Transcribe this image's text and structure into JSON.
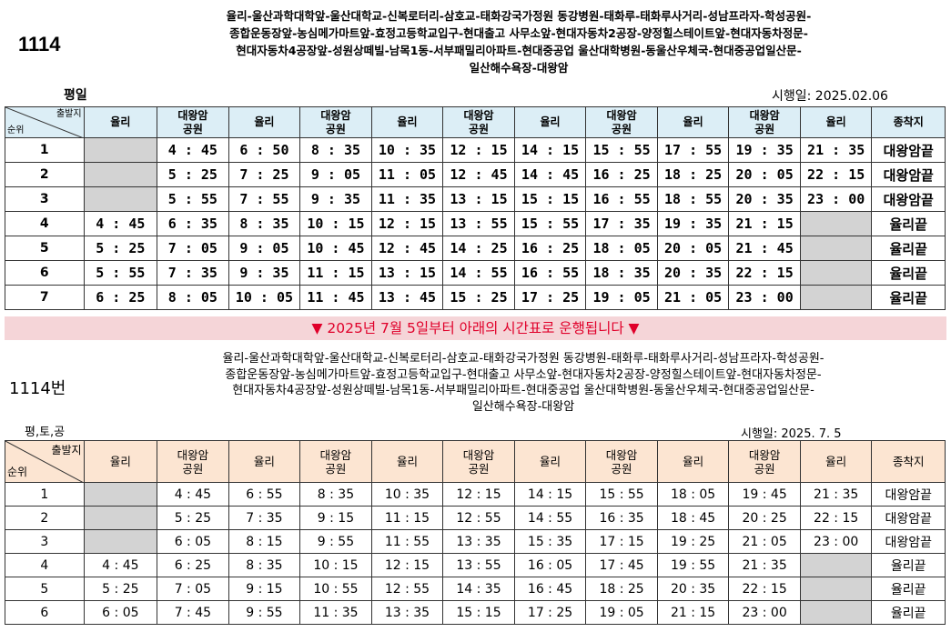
{
  "top": {
    "route": "1114",
    "stops": [
      "율리-울산과학대학앞-울산대학교-신복로터리-삼호교-태화강국가정원 동강병원-태화루-태화루사거리-성남프라자-학성공원-",
      "종합운동장앞-농심메가마트앞-효정고등학교입구-현대출고 사무소앞-현대자동차2공장-양정힐스테이트앞-현대자동차정문-",
      "현대자동차4공장앞-성원상떼빌-남목1동-서부패밀리아파트-현대중공업 울산대학병원-동울산우체국-현대중공업일산문-",
      "일산해수욕장-대왕암"
    ],
    "day_label": "평일",
    "effective_date": "시행일: 2025.02.06",
    "corner_top": "출발지",
    "corner_bottom": "순위",
    "headers": [
      "율리",
      "대왕암\n공원",
      "율리",
      "대왕암\n공원",
      "율리",
      "대왕암\n공원",
      "율리",
      "대왕암\n공원",
      "율리",
      "대왕암\n공원",
      "율리",
      "종착지"
    ],
    "rows": [
      {
        "rank": "1",
        "times": [
          "",
          "4 : 45",
          "6 : 50",
          "8 : 35",
          "10 : 35",
          "12 : 15",
          "14 : 15",
          "15 : 55",
          "17 : 55",
          "19 : 35",
          "21 : 35"
        ],
        "terminal": "대왕암끝"
      },
      {
        "rank": "2",
        "times": [
          "",
          "5 : 25",
          "7 : 25",
          "9 : 05",
          "11 : 05",
          "12 : 45",
          "14 : 45",
          "16 : 25",
          "18 : 25",
          "20 : 05",
          "22 : 15"
        ],
        "terminal": "대왕암끝"
      },
      {
        "rank": "3",
        "times": [
          "",
          "5 : 55",
          "7 : 55",
          "9 : 35",
          "11 : 35",
          "13 : 15",
          "15 : 15",
          "16 : 55",
          "18 : 55",
          "20 : 35",
          "23 : 00"
        ],
        "terminal": "대왕암끝"
      },
      {
        "rank": "4",
        "times": [
          "4 : 45",
          "6 : 35",
          "8 : 35",
          "10 : 15",
          "12 : 15",
          "13 : 55",
          "15 : 55",
          "17 : 35",
          "19 : 35",
          "21 : 15",
          ""
        ],
        "terminal": "율리끝"
      },
      {
        "rank": "5",
        "times": [
          "5 : 25",
          "7 : 05",
          "9 : 05",
          "10 : 45",
          "12 : 45",
          "14 : 25",
          "16 : 25",
          "18 : 05",
          "20 : 05",
          "21 : 45",
          ""
        ],
        "terminal": "율리끝"
      },
      {
        "rank": "6",
        "times": [
          "5 : 55",
          "7 : 35",
          "9 : 35",
          "11 : 15",
          "13 : 15",
          "14 : 55",
          "16 : 55",
          "18 : 35",
          "20 : 35",
          "22 : 15",
          ""
        ],
        "terminal": "율리끝"
      },
      {
        "rank": "7",
        "times": [
          "6 : 25",
          "8 : 05",
          "10 : 05",
          "11 : 45",
          "13 : 45",
          "15 : 25",
          "17 : 25",
          "19 : 05",
          "21 : 05",
          "23 : 00",
          ""
        ],
        "terminal": "율리끝"
      }
    ]
  },
  "banner": "▼ 2025년 7월 5일부터 아래의 시간표로 운행됩니다 ▼",
  "bottom": {
    "route": "1114번",
    "stops": [
      "율리-울산과학대학앞-울산대학교-신복로터리-삼호교-태화강국가정원 동강병원-태화루-태화루사거리-성남프라자-학성공원-",
      "종합운동장앞-농심메가마트앞-효정고등학교입구-현대출고 사무소앞-현대자동차2공장-양정힐스테이트앞-현대자동차정문-",
      "현대자동차4공장앞-성원상떼빌-남목1동-서부패밀리아파트-현대중공업 울산대학병원-동울산우체국-현대중공업일산문-",
      "일산해수욕장-대왕암"
    ],
    "day_label": "평,토,공",
    "effective_date": "시행일: 2025. 7. 5",
    "corner_top": "출발지",
    "corner_bottom": "순위",
    "headers": [
      "율리",
      "대왕암\n공원",
      "율리",
      "대왕암\n공원",
      "율리",
      "대왕암\n공원",
      "율리",
      "대왕암\n공원",
      "율리",
      "대왕암\n공원",
      "율리",
      "종착지"
    ],
    "rows": [
      {
        "rank": "1",
        "times": [
          "",
          "4 : 45",
          "6 : 55",
          "8 : 35",
          "10 : 35",
          "12 : 15",
          "14 : 15",
          "15 : 55",
          "18 : 05",
          "19 : 45",
          "21 : 35"
        ],
        "terminal": "대왕암끝"
      },
      {
        "rank": "2",
        "times": [
          "",
          "5 : 25",
          "7 : 35",
          "9 : 15",
          "11 : 15",
          "12 : 55",
          "14 : 55",
          "16 : 35",
          "18 : 45",
          "20 : 25",
          "22 : 15"
        ],
        "terminal": "대왕암끝"
      },
      {
        "rank": "3",
        "times": [
          "",
          "6 : 05",
          "8 : 15",
          "9 : 55",
          "11 : 55",
          "13 : 35",
          "15 : 35",
          "17 : 15",
          "19 : 25",
          "21 : 05",
          "23 : 00"
        ],
        "terminal": "대왕암끝"
      },
      {
        "rank": "4",
        "times": [
          "4 : 45",
          "6 : 25",
          "8 : 35",
          "10 : 15",
          "12 : 15",
          "13 : 55",
          "16 : 05",
          "17 : 45",
          "19 : 55",
          "21 : 35",
          ""
        ],
        "terminal": "율리끝"
      },
      {
        "rank": "5",
        "times": [
          "5 : 25",
          "7 : 05",
          "9 : 15",
          "10 : 55",
          "12 : 55",
          "14 : 35",
          "16 : 45",
          "18 : 25",
          "20 : 35",
          "22 : 15",
          ""
        ],
        "terminal": "율리끝"
      },
      {
        "rank": "6",
        "times": [
          "6 : 05",
          "7 : 45",
          "9 : 55",
          "11 : 35",
          "13 : 35",
          "15 : 15",
          "17 : 25",
          "19 : 05",
          "21 : 15",
          "23 : 00",
          ""
        ],
        "terminal": "율리끝"
      }
    ]
  },
  "colors": {
    "top_header_bg": "#dceef6",
    "bottom_header_bg": "#fce5d2",
    "empty_cell": "#d3d3d3",
    "banner_bg": "#f5d5d8",
    "banner_text": "#e0002a"
  }
}
